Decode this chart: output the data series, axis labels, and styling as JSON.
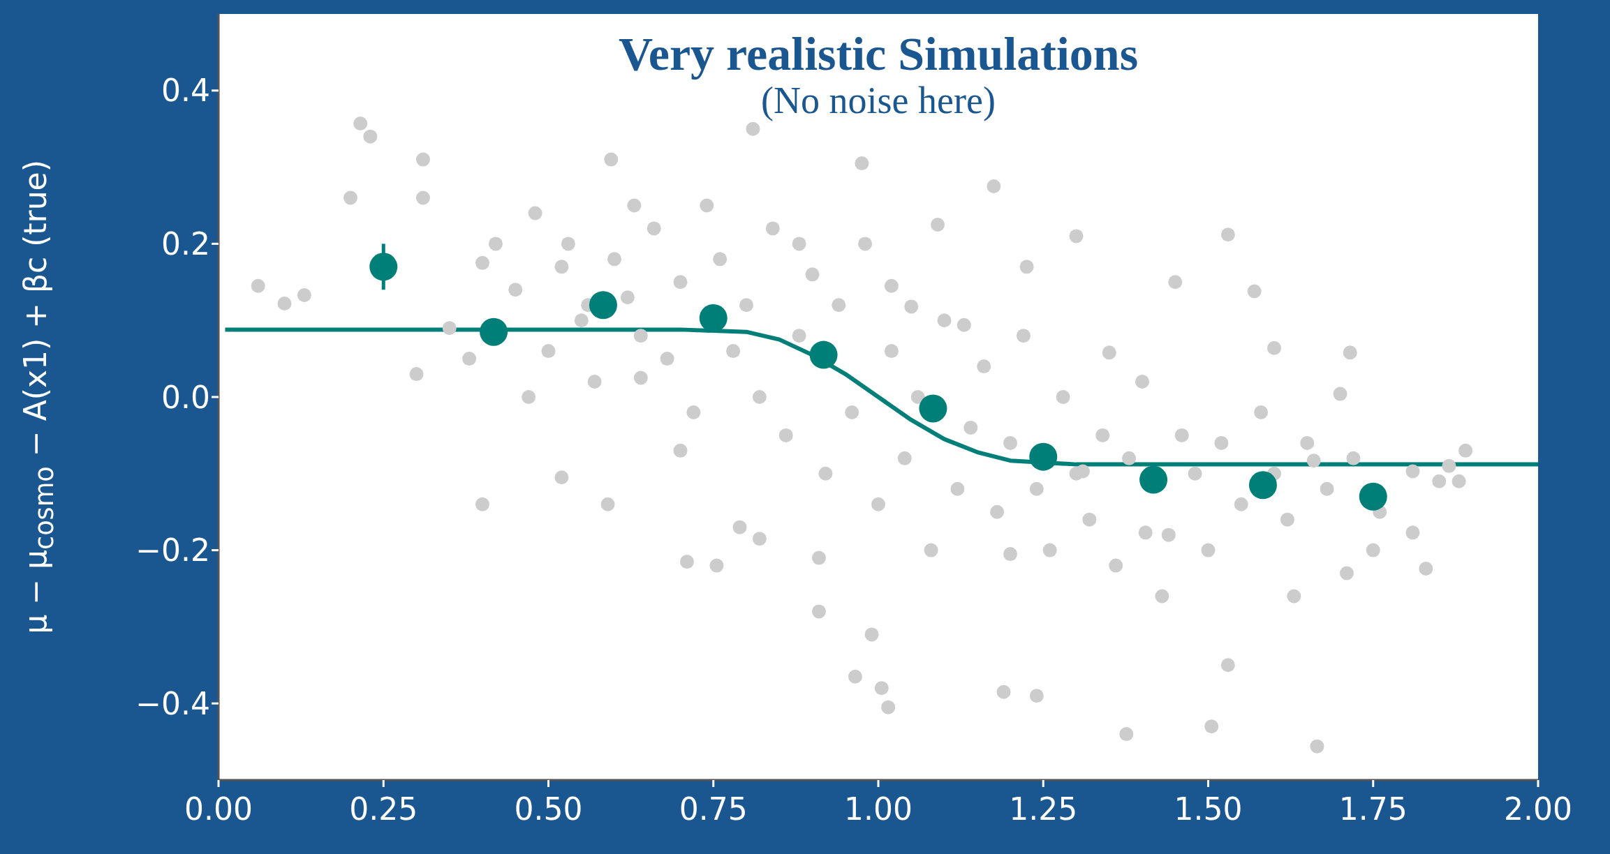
{
  "chart_data": {
    "type": "scatter",
    "title": "Very realistic Simulations",
    "subtitle": "(No noise here)",
    "ylabel": "μ − μ$_{cosmo}$ − A(x1) + βc (true)",
    "xlim": [
      0,
      2
    ],
    "ylim": [
      -0.5,
      0.5
    ],
    "xticks": [
      {
        "value": 0,
        "label": "0.00"
      },
      {
        "value": 0.25,
        "label": "0.25"
      },
      {
        "value": 0.5,
        "label": "0.50"
      },
      {
        "value": 0.75,
        "label": "0.75"
      },
      {
        "value": 1,
        "label": "1.00"
      },
      {
        "value": 1.25,
        "label": "1.25"
      },
      {
        "value": 1.5,
        "label": "1.50"
      },
      {
        "value": 1.75,
        "label": "1.75"
      },
      {
        "value": 2,
        "label": "2.00"
      }
    ],
    "yticks": [
      {
        "value": -0.4,
        "label": "−0.4"
      },
      {
        "value": -0.2,
        "label": "−0.2"
      },
      {
        "value": 0,
        "label": "0.0"
      },
      {
        "value": 0.2,
        "label": "0.2"
      },
      {
        "value": 0.4,
        "label": "0.4"
      }
    ],
    "grid": false,
    "marker": "circle",
    "series": [
      {
        "color": "#cccccc",
        "x": [
          0.06,
          0.1,
          0.13,
          0.215,
          0.23,
          0.2,
          0.31,
          0.31,
          0.3,
          0.4,
          0.4,
          0.48,
          0.52,
          0.52,
          0.56,
          0.59,
          0.595,
          0.63,
          0.64,
          0.7,
          0.71,
          0.755,
          0.81,
          0.79,
          0.82,
          0.88,
          0.91,
          0.91,
          0.975,
          0.965,
          1.005,
          1.015,
          0.99,
          1.02,
          1.05,
          1.09,
          1.13,
          1.175,
          1.2,
          1.19,
          1.24,
          1.225,
          1.3,
          1.31,
          1.376,
          1.35,
          1.405,
          1.43,
          1.45,
          1.53,
          1.505,
          1.53,
          1.57,
          1.6,
          1.63,
          1.66,
          1.665,
          1.7,
          1.715,
          1.71,
          1.76,
          1.81,
          1.81,
          1.83,
          1.865,
          1.89,
          1.88,
          1.85,
          0.35,
          0.38,
          0.42,
          0.45,
          0.47,
          0.5,
          0.53,
          0.55,
          0.57,
          0.6,
          0.62,
          0.64,
          0.66,
          0.68,
          0.7,
          0.72,
          0.74,
          0.76,
          0.78,
          0.8,
          0.82,
          0.84,
          0.86,
          0.88,
          0.9,
          0.92,
          0.94,
          0.96,
          0.98,
          1.0,
          1.02,
          1.04,
          1.06,
          1.08,
          1.1,
          1.12,
          1.14,
          1.16,
          1.18,
          1.2,
          1.22,
          1.24,
          1.26,
          1.28,
          1.3,
          1.32,
          1.34,
          1.36,
          1.38,
          1.4,
          1.42,
          1.44,
          1.46,
          1.48,
          1.5,
          1.52,
          1.55,
          1.58,
          1.6,
          1.62,
          1.65,
          1.68,
          1.72,
          1.75
        ],
        "values": [
          0.145,
          0.122,
          0.133,
          0.357,
          0.34,
          0.26,
          0.31,
          0.26,
          0.03,
          -0.14,
          0.175,
          0.24,
          0.17,
          -0.105,
          0.12,
          -0.14,
          0.31,
          0.25,
          0.025,
          -0.07,
          -0.215,
          -0.22,
          0.35,
          -0.17,
          -0.185,
          0.2,
          -0.21,
          -0.28,
          0.305,
          -0.365,
          -0.38,
          -0.405,
          -0.31,
          0.145,
          0.118,
          0.225,
          0.094,
          0.275,
          -0.205,
          -0.385,
          -0.39,
          0.17,
          0.21,
          -0.097,
          -0.44,
          0.058,
          -0.177,
          -0.26,
          0.15,
          0.212,
          -0.43,
          -0.35,
          0.138,
          0.064,
          -0.26,
          -0.083,
          -0.456,
          0.004,
          0.058,
          -0.23,
          -0.15,
          -0.097,
          -0.177,
          -0.224,
          -0.09,
          -0.07,
          -0.11,
          -0.11,
          0.09,
          0.05,
          0.2,
          0.14,
          0.0,
          0.06,
          0.2,
          0.1,
          0.02,
          0.18,
          0.13,
          0.08,
          0.22,
          0.05,
          0.15,
          -0.02,
          0.25,
          0.18,
          0.06,
          0.12,
          0.0,
          0.22,
          -0.05,
          0.08,
          0.16,
          -0.1,
          0.12,
          -0.02,
          0.2,
          -0.14,
          0.06,
          -0.08,
          0.0,
          -0.2,
          0.1,
          -0.12,
          -0.04,
          0.04,
          -0.15,
          -0.06,
          0.08,
          -0.12,
          -0.2,
          0.0,
          -0.1,
          -0.16,
          -0.05,
          -0.22,
          -0.08,
          0.02,
          null,
          -0.18,
          -0.05,
          -0.1,
          -0.2,
          -0.06,
          -0.14,
          -0.02,
          -0.1,
          -0.16,
          -0.06,
          -0.12,
          -0.08,
          -0.2
        ]
      },
      {
        "type": "line",
        "color": "#007f79",
        "marker": "none",
        "x": [
          0.01,
          0.7,
          0.8,
          0.85,
          0.9,
          0.95,
          1.0,
          1.05,
          1.1,
          1.15,
          1.2,
          1.3,
          2.0
        ],
        "values": [
          0.088,
          0.088,
          0.085,
          0.075,
          0.055,
          0.03,
          0.0,
          -0.03,
          -0.055,
          -0.072,
          -0.083,
          -0.088,
          -0.088
        ]
      },
      {
        "color": "#007f79",
        "x": [
          0.25,
          0.417,
          0.583,
          0.75,
          0.917,
          1.083,
          1.25,
          1.417,
          1.583,
          1.75
        ],
        "values": [
          0.17,
          0.085,
          0.12,
          0.103,
          0.055,
          -0.015,
          -0.078,
          -0.108,
          -0.115,
          -0.13
        ],
        "errors": [
          0.03,
          null,
          null,
          null,
          null,
          null,
          null,
          null,
          null,
          null
        ]
      }
    ]
  }
}
